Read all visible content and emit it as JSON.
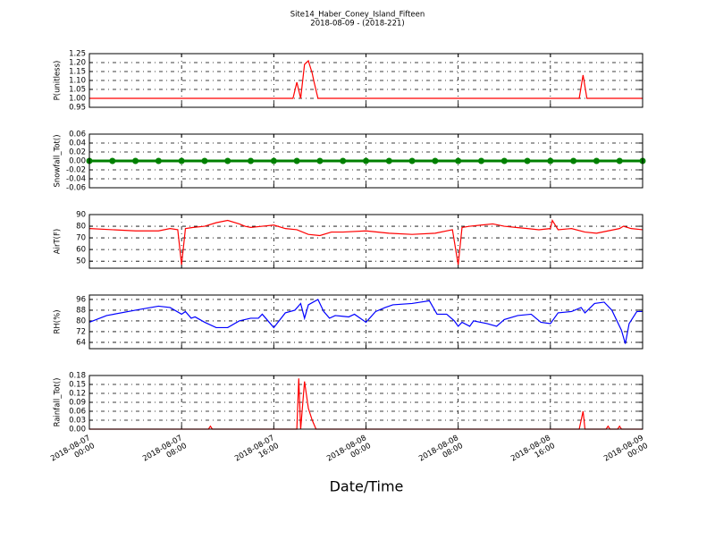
{
  "chart_data": [
    {
      "type": "line",
      "title": "Site14_Haber_Coney_Island_Fifteen",
      "subtitle": "2018-08-09 - (2018-221)",
      "ylabel": "P(unitless)",
      "color": "#ff0000",
      "xlim": [
        "2018-08-07 00:00",
        "2018-08-09 00:00"
      ],
      "ylim": [
        0.95,
        1.25
      ],
      "yticks": [
        0.95,
        {
          "value": 1,
          "label": "1.00"
        },
        1.05,
        {
          "value": 1.1,
          "label": "1.10"
        },
        1.15,
        {
          "value": 1.2,
          "label": "1.20"
        },
        1.25
      ],
      "grid": true,
      "x": [
        "2018-08-07 00:00",
        "2018-08-07 17:40",
        "2018-08-07 18:00",
        "2018-08-07 18:20",
        "2018-08-07 18:40",
        "2018-08-07 19:00",
        "2018-08-07 19:20",
        "2018-08-07 19:30",
        "2018-08-07 19:50",
        "2018-08-08 18:30",
        "2018-08-08 18:50",
        "2018-08-08 19:10",
        "2018-08-09 00:00"
      ],
      "values": [
        1.0,
        1.0,
        1.09,
        1.0,
        1.19,
        1.21,
        1.14,
        1.09,
        1.0,
        1.0,
        1.13,
        1.0,
        1.0
      ]
    },
    {
      "type": "line",
      "ylabel": "Snowfall_Tot()",
      "color": "#008000",
      "marker": "o",
      "xlim": [
        "2018-08-07 00:00",
        "2018-08-09 00:00"
      ],
      "ylim": [
        -0.06,
        0.06
      ],
      "yticks": [
        -0.06,
        -0.04,
        -0.02,
        {
          "value": 0,
          "label": "0.00"
        },
        0.02,
        0.04,
        0.06
      ],
      "grid": true,
      "x": [
        "2018-08-07 00:00",
        "2018-08-07 02:00",
        "2018-08-07 04:00",
        "2018-08-07 06:00",
        "2018-08-07 08:00",
        "2018-08-07 10:00",
        "2018-08-07 12:00",
        "2018-08-07 14:00",
        "2018-08-07 16:00",
        "2018-08-07 18:00",
        "2018-08-07 20:00",
        "2018-08-07 22:00",
        "2018-08-08 00:00",
        "2018-08-08 02:00",
        "2018-08-08 04:00",
        "2018-08-08 06:00",
        "2018-08-08 08:00",
        "2018-08-08 10:00",
        "2018-08-08 12:00",
        "2018-08-08 14:00",
        "2018-08-08 16:00",
        "2018-08-08 18:00",
        "2018-08-08 20:00",
        "2018-08-08 22:00",
        "2018-08-09 00:00"
      ],
      "values": [
        0,
        0,
        0,
        0,
        0,
        0,
        0,
        0,
        0,
        0,
        0,
        0,
        0,
        0,
        0,
        0,
        0,
        0,
        0,
        0,
        0,
        0,
        0,
        0,
        0
      ]
    },
    {
      "type": "line",
      "ylabel": "AirT(F)",
      "color": "#ff0000",
      "xlim": [
        "2018-08-07 00:00",
        "2018-08-09 00:00"
      ],
      "ylim": [
        44,
        90
      ],
      "yticks": [
        50,
        60,
        70,
        80,
        90
      ],
      "grid": true,
      "x": [
        "2018-08-07 00:00",
        "2018-08-07 02:00",
        "2018-08-07 04:00",
        "2018-08-07 06:00",
        "2018-08-07 07:00",
        "2018-08-07 07:40",
        "2018-08-07 08:00",
        "2018-08-07 08:20",
        "2018-08-07 09:00",
        "2018-08-07 10:00",
        "2018-08-07 11:00",
        "2018-08-07 12:00",
        "2018-08-07 13:00",
        "2018-08-07 13:30",
        "2018-08-07 14:00",
        "2018-08-07 15:00",
        "2018-08-07 16:00",
        "2018-08-07 17:00",
        "2018-08-07 18:00",
        "2018-08-07 19:00",
        "2018-08-07 20:00",
        "2018-08-07 21:00",
        "2018-08-07 22:00",
        "2018-08-08 00:00",
        "2018-08-08 02:00",
        "2018-08-08 04:00",
        "2018-08-08 06:00",
        "2018-08-08 07:30",
        "2018-08-08 08:00",
        "2018-08-08 08:20",
        "2018-08-08 09:00",
        "2018-08-08 10:00",
        "2018-08-08 11:00",
        "2018-08-08 12:00",
        "2018-08-08 13:00",
        "2018-08-08 14:00",
        "2018-08-08 15:00",
        "2018-08-08 16:00",
        "2018-08-08 16:10",
        "2018-08-08 16:40",
        "2018-08-08 17:50",
        "2018-08-08 19:00",
        "2018-08-08 20:00",
        "2018-08-08 21:00",
        "2018-08-08 22:00",
        "2018-08-08 22:20",
        "2018-08-08 23:00",
        "2018-08-09 00:00"
      ],
      "values": [
        78,
        77,
        76,
        76,
        78,
        77,
        47,
        78,
        79,
        80,
        83,
        85,
        82,
        80,
        79,
        80,
        81,
        78,
        77,
        73,
        72,
        75,
        75,
        76,
        74,
        73,
        74,
        77,
        47,
        79,
        80,
        81,
        82,
        80,
        79,
        78,
        77,
        78,
        85,
        77,
        78,
        75,
        74,
        76,
        78,
        80,
        78,
        77
      ]
    },
    {
      "type": "line",
      "ylabel": "RH(%)",
      "color": "#0000ff",
      "xlim": [
        "2018-08-07 00:00",
        "2018-08-09 00:00"
      ],
      "ylim": [
        59.3,
        99.3
      ],
      "yticks": [
        64,
        72,
        80,
        88,
        96
      ],
      "grid": true,
      "x": [
        "2018-08-07 00:00",
        "2018-08-07 01:30",
        "2018-08-07 04:00",
        "2018-08-07 06:00",
        "2018-08-07 07:00",
        "2018-08-07 08:00",
        "2018-08-07 08:20",
        "2018-08-07 08:50",
        "2018-08-07 09:10",
        "2018-08-07 10:00",
        "2018-08-07 11:00",
        "2018-08-07 12:00",
        "2018-08-07 13:00",
        "2018-08-07 14:00",
        "2018-08-07 14:40",
        "2018-08-07 15:00",
        "2018-08-07 15:30",
        "2018-08-07 16:00",
        "2018-08-07 17:00",
        "2018-08-07 17:50",
        "2018-08-07 18:20",
        "2018-08-07 18:40",
        "2018-08-07 19:00",
        "2018-08-07 19:50",
        "2018-08-07 20:20",
        "2018-08-07 20:50",
        "2018-08-07 21:20",
        "2018-08-07 22:30",
        "2018-08-07 23:00",
        "2018-08-08 00:00",
        "2018-08-08 00:50",
        "2018-08-08 01:40",
        "2018-08-08 02:20",
        "2018-08-08 04:00",
        "2018-08-08 05:30",
        "2018-08-08 06:10",
        "2018-08-08 07:00",
        "2018-08-08 07:40",
        "2018-08-08 08:00",
        "2018-08-08 08:20",
        "2018-08-08 09:00",
        "2018-08-08 09:20",
        "2018-08-08 10:30",
        "2018-08-08 11:20",
        "2018-08-08 12:00",
        "2018-08-08 13:10",
        "2018-08-08 14:20",
        "2018-08-08 15:10",
        "2018-08-08 16:00",
        "2018-08-08 16:40",
        "2018-08-08 17:50",
        "2018-08-08 18:40",
        "2018-08-08 19:00",
        "2018-08-08 19:50",
        "2018-08-08 20:40",
        "2018-08-08 21:20",
        "2018-08-08 22:10",
        "2018-08-08 22:30",
        "2018-08-08 22:50",
        "2018-08-08 23:30",
        "2018-08-09 00:00"
      ],
      "values": [
        79,
        84,
        88,
        91,
        90,
        85,
        87,
        82,
        83,
        79,
        75,
        75,
        80,
        82,
        82,
        85,
        80,
        75,
        86,
        88,
        93,
        82,
        92,
        96,
        87,
        82,
        84,
        83,
        85,
        79,
        87,
        90,
        92,
        93,
        95,
        85,
        85,
        80,
        76,
        79,
        76,
        80,
        78,
        76,
        81,
        84,
        85,
        79,
        78,
        86,
        87,
        90,
        86,
        93,
        94,
        88,
        73,
        63,
        78,
        87,
        87
      ]
    },
    {
      "type": "line",
      "ylabel": "Rainfall_Tot()",
      "xlabel": "Date/Time",
      "color": "#ff0000",
      "xlim": [
        "2018-08-07 00:00",
        "2018-08-09 00:00"
      ],
      "ylim": [
        0,
        0.18
      ],
      "yticks": [
        {
          "value": 0,
          "label": "0.00"
        },
        0.03,
        0.06,
        0.09,
        0.12,
        0.15,
        0.18
      ],
      "grid": true,
      "xticks": [
        {
          "value": "2018-08-07 00:00",
          "label": "2018-08-07\n00:00"
        },
        {
          "value": "2018-08-07 08:00",
          "label": "2018-08-07\n08:00"
        },
        {
          "value": "2018-08-07 16:00",
          "label": "2018-08-07\n16:00"
        },
        {
          "value": "2018-08-08 00:00",
          "label": "2018-08-08\n00:00"
        },
        {
          "value": "2018-08-08 08:00",
          "label": "2018-08-08\n08:00"
        },
        {
          "value": "2018-08-08 16:00",
          "label": "2018-08-08\n16:00"
        },
        {
          "value": "2018-08-09 00:00",
          "label": "2018-08-09\n00:00"
        }
      ],
      "x": [
        "2018-08-07 00:00",
        "2018-08-07 10:20",
        "2018-08-07 10:30",
        "2018-08-07 10:40",
        "2018-08-07 18:00",
        "2018-08-07 18:10",
        "2018-08-07 18:20",
        "2018-08-07 18:40",
        "2018-08-07 19:00",
        "2018-08-07 19:20",
        "2018-08-07 19:40",
        "2018-08-08 18:30",
        "2018-08-08 18:50",
        "2018-08-08 19:00",
        "2018-08-08 20:50",
        "2018-08-08 21:00",
        "2018-08-08 21:10",
        "2018-08-08 21:50",
        "2018-08-08 22:00",
        "2018-08-08 22:10",
        "2018-08-09 00:00"
      ],
      "values": [
        0,
        0,
        0.01,
        0,
        0,
        0.17,
        0,
        0.16,
        0.07,
        0.03,
        0,
        0,
        0.06,
        0,
        0,
        0.01,
        0,
        0,
        0.01,
        0,
        0
      ]
    }
  ]
}
